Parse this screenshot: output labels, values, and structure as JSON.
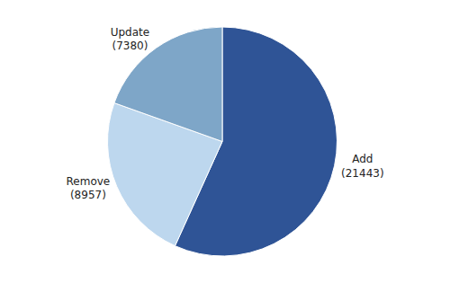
{
  "chart_data": {
    "type": "pie",
    "categories": [
      "Add",
      "Remove",
      "Update"
    ],
    "values": [
      21443,
      8957,
      7380
    ],
    "colors": [
      "#2F5496",
      "#BDD7EE",
      "#7EA6C8"
    ],
    "data_labels": true,
    "value_labels": [
      "Add\n(21443)",
      "Remove\n(8957)",
      "Update\n(7380)"
    ]
  }
}
